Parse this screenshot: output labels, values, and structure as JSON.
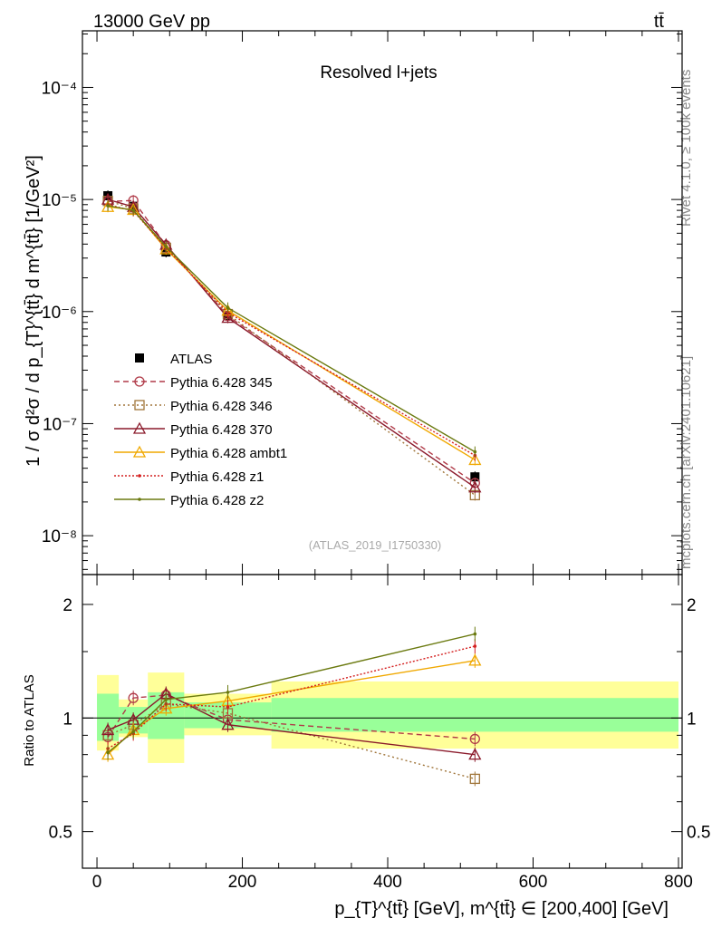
{
  "header": {
    "left": "13000 GeV pp",
    "right": "tt̄"
  },
  "side_labels": {
    "rivet": "Rivet 4.1.0, ≥ 100k events",
    "mcplots": "mcplots.cern.ch [arXiv:2401.10621]"
  },
  "colors": {
    "atlas": "#000000",
    "p345": "#b03a48",
    "p346": "#a0753a",
    "p370": "#8b1a2b",
    "ambt1": "#f0a800",
    "z1": "#d42020",
    "z2": "#6b7a10",
    "band_inner": "#99ff99",
    "band_outer": "#ffff99"
  },
  "chart_data": [
    {
      "type": "line",
      "panel": "main",
      "title": "Resolved l+jets",
      "watermark": "(ATLAS_2019_I1750330)",
      "xlabel": "p_{T}^{tt̄} [GeV], m^{tt̄} ∈ [200,400] [GeV]",
      "ylabel": "1 / σ d²σ / d p_{T}^{tt̄} d m^{tt̄} [1/GeV²]",
      "yscale": "log",
      "xlim": [
        -20,
        805
      ],
      "ylim": [
        4.5e-09,
        0.00032
      ],
      "y_ticks": [
        {
          "value": 1e-08,
          "label": "10⁻⁸"
        },
        {
          "value": 1e-07,
          "label": "10⁻⁷"
        },
        {
          "value": 1e-06,
          "label": "10⁻⁶"
        },
        {
          "value": 1e-05,
          "label": "10⁻⁵"
        },
        {
          "value": 0.0001,
          "label": "10⁻⁴"
        }
      ],
      "x": [
        15,
        50,
        95,
        180,
        520
      ],
      "bin_edges": [
        0,
        30,
        70,
        120,
        240,
        800
      ],
      "legend_position": "center-left",
      "series": [
        {
          "name": "ATLAS",
          "key": "atlas",
          "marker": "square",
          "dash": "none",
          "values": [
            1.08e-05,
            8.7e-06,
            3.4e-06,
            9.2e-07,
            3.35e-08
          ]
        },
        {
          "name": "Pythia 6.428 345",
          "key": "p345",
          "marker": "circle",
          "dash": "6,4",
          "values": [
            9.6e-06,
            9.8e-06,
            3.9e-06,
            9.1e-07,
            2.95e-08
          ]
        },
        {
          "name": "Pythia 6.428 346",
          "key": "p346",
          "marker": "square-open",
          "dash": "2,3",
          "values": [
            9.7e-06,
            8.3e-06,
            3.7e-06,
            9.5e-07,
            2.3e-08
          ]
        },
        {
          "name": "Pythia 6.428 370",
          "key": "p370",
          "marker": "triangle",
          "dash": "none",
          "values": [
            1e-05,
            8.6e-06,
            3.95e-06,
            8.8e-07,
            2.7e-08
          ]
        },
        {
          "name": "Pythia 6.428 ambt1",
          "key": "ambt1",
          "marker": "triangle",
          "dash": "none",
          "values": [
            8.6e-06,
            8.1e-06,
            3.6e-06,
            1.02e-06,
            4.75e-08
          ]
        },
        {
          "name": "Pythia 6.428 z1",
          "key": "z1",
          "marker": "dot",
          "dash": "2,2",
          "values": [
            9e-06,
            7.9e-06,
            3.7e-06,
            9.8e-07,
            5.2e-08
          ]
        },
        {
          "name": "Pythia 6.428 z2",
          "key": "z2",
          "marker": "dot",
          "dash": "none",
          "values": [
            8.8e-06,
            8e-06,
            3.8e-06,
            1.08e-06,
            5.6e-08
          ]
        }
      ]
    },
    {
      "type": "line",
      "panel": "ratio",
      "ylabel": "Ratio to ATLAS",
      "yscale": "log",
      "xlim": [
        -20,
        805
      ],
      "ylim": [
        0.4,
        2.4
      ],
      "x_ticks": [
        0,
        200,
        400,
        600,
        800
      ],
      "y_ticks": [
        {
          "value": 0.5,
          "label": "0.5"
        },
        {
          "value": 1,
          "label": "1"
        },
        {
          "value": 2,
          "label": "2"
        }
      ],
      "bands": {
        "bin_edges": [
          0,
          30,
          70,
          120,
          240,
          800
        ],
        "inner": [
          [
            0.87,
            1.16
          ],
          [
            0.91,
            1.07
          ],
          [
            0.88,
            1.17
          ],
          [
            0.94,
            1.1
          ],
          [
            0.92,
            1.13
          ]
        ],
        "outer": [
          [
            0.82,
            1.3
          ],
          [
            0.89,
            1.12
          ],
          [
            0.76,
            1.32
          ],
          [
            0.9,
            1.16
          ],
          [
            0.83,
            1.25
          ]
        ]
      },
      "series": [
        {
          "name": "Pythia 6.428 345",
          "key": "p345",
          "values": [
            0.89,
            1.13,
            1.15,
            0.99,
            0.88
          ]
        },
        {
          "name": "Pythia 6.428 346",
          "key": "p346",
          "values": [
            0.9,
            0.96,
            1.09,
            1.03,
            0.69
          ]
        },
        {
          "name": "Pythia 6.428 370",
          "key": "p370",
          "values": [
            0.93,
            0.99,
            1.16,
            0.96,
            0.8
          ]
        },
        {
          "name": "Pythia 6.428 ambt1",
          "key": "ambt1",
          "values": [
            0.8,
            0.93,
            1.06,
            1.11,
            1.42
          ]
        },
        {
          "name": "Pythia 6.428 z1",
          "key": "z1",
          "values": [
            0.83,
            0.91,
            1.09,
            1.07,
            1.55
          ]
        },
        {
          "name": "Pythia 6.428 z2",
          "key": "z2",
          "values": [
            0.81,
            0.92,
            1.12,
            1.17,
            1.67
          ]
        }
      ]
    }
  ]
}
